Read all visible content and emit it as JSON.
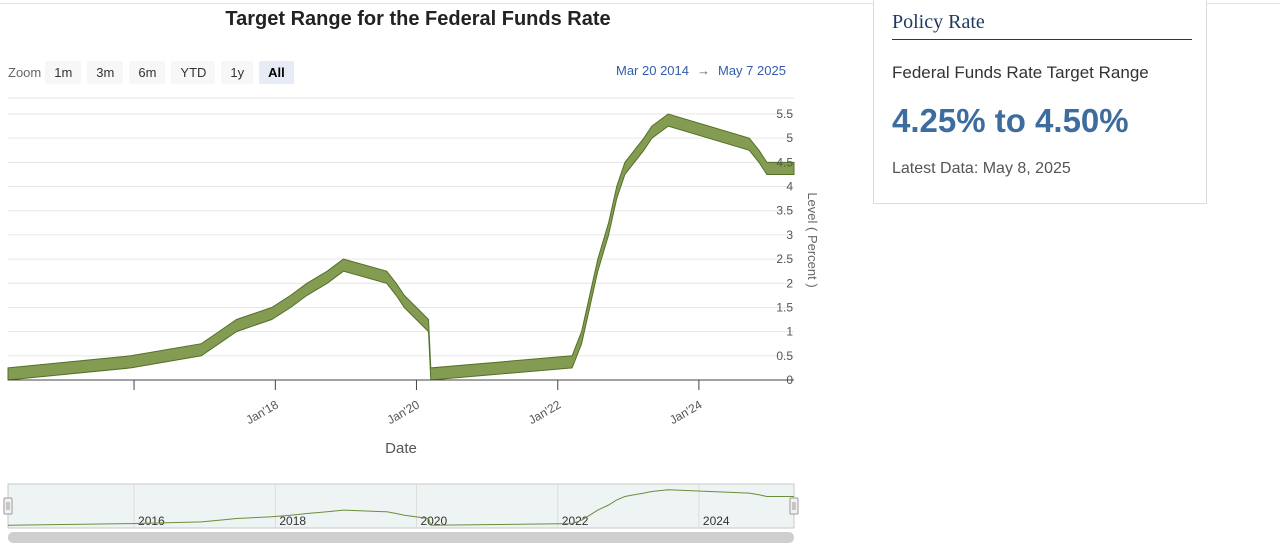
{
  "chart_title": "Target Range for the Federal Funds Rate",
  "zoom": {
    "label": "Zoom",
    "buttons": [
      "1m",
      "3m",
      "6m",
      "YTD",
      "1y",
      "All"
    ],
    "active": "All"
  },
  "date_range": {
    "from": "Mar 20 2014",
    "arrow": "→",
    "to": "May 7 2025"
  },
  "policy_card": {
    "heading": "Policy Rate",
    "subtitle": "Federal Funds Rate Target Range",
    "value": "4.25% to 4.50%",
    "latest": "Latest Data: May 8, 2025"
  },
  "colors": {
    "band_fill": "#839c52",
    "band_stroke": "#55702a",
    "nav_line": "#6b8e3a",
    "accent_text": "#3d6d9e"
  },
  "chart_data": {
    "type": "area",
    "xlabel": "Date",
    "ylabel": "Level ( Percent )",
    "x_range": [
      "2014-03-20",
      "2025-05-07"
    ],
    "ylim": [
      0,
      5.5
    ],
    "y_ticks": [
      "0",
      "0.5",
      "1",
      "1.5",
      "2",
      "2.5",
      "3",
      "3.5",
      "4",
      "4.5",
      "5",
      "5.5"
    ],
    "x_ticks": [
      {
        "date": "2016-01-01",
        "label": ""
      },
      {
        "date": "2018-01-01",
        "label": "Jan'18"
      },
      {
        "date": "2020-01-01",
        "label": "Jan'20"
      },
      {
        "date": "2022-01-01",
        "label": "Jan'22"
      },
      {
        "date": "2024-01-01",
        "label": "Jan'24"
      }
    ],
    "navigator_labels": [
      {
        "date": "2016-01-01",
        "label": "2016"
      },
      {
        "date": "2018-01-01",
        "label": "2018"
      },
      {
        "date": "2020-01-01",
        "label": "2020"
      },
      {
        "date": "2022-01-01",
        "label": "2022"
      },
      {
        "date": "2024-01-01",
        "label": "2024"
      }
    ],
    "grid": true,
    "series": [
      {
        "values": [
          {
            "x": "2014-03-20",
            "low": 0,
            "high": 0.25
          },
          {
            "x": "2015-12-16",
            "low": 0.25,
            "high": 0.5
          },
          {
            "x": "2016-12-14",
            "low": 0.5,
            "high": 0.75
          },
          {
            "x": "2017-03-15",
            "low": 0.75,
            "high": 1.0
          },
          {
            "x": "2017-06-14",
            "low": 1.0,
            "high": 1.25
          },
          {
            "x": "2017-12-13",
            "low": 1.25,
            "high": 1.5
          },
          {
            "x": "2018-03-21",
            "low": 1.5,
            "high": 1.75
          },
          {
            "x": "2018-06-13",
            "low": 1.75,
            "high": 2.0
          },
          {
            "x": "2018-09-26",
            "low": 2.0,
            "high": 2.25
          },
          {
            "x": "2018-12-19",
            "low": 2.25,
            "high": 2.5
          },
          {
            "x": "2019-07-31",
            "low": 2.0,
            "high": 2.25
          },
          {
            "x": "2019-09-18",
            "low": 1.75,
            "high": 2.0
          },
          {
            "x": "2019-10-30",
            "low": 1.5,
            "high": 1.75
          },
          {
            "x": "2020-03-03",
            "low": 1.0,
            "high": 1.25
          },
          {
            "x": "2020-03-15",
            "low": 0,
            "high": 0.25
          },
          {
            "x": "2022-03-16",
            "low": 0.25,
            "high": 0.5
          },
          {
            "x": "2022-05-04",
            "low": 0.75,
            "high": 1.0
          },
          {
            "x": "2022-06-15",
            "low": 1.5,
            "high": 1.75
          },
          {
            "x": "2022-07-27",
            "low": 2.25,
            "high": 2.5
          },
          {
            "x": "2022-09-21",
            "low": 3.0,
            "high": 3.25
          },
          {
            "x": "2022-11-02",
            "low": 3.75,
            "high": 4.0
          },
          {
            "x": "2022-12-14",
            "low": 4.25,
            "high": 4.5
          },
          {
            "x": "2023-02-01",
            "low": 4.5,
            "high": 4.75
          },
          {
            "x": "2023-03-22",
            "low": 4.75,
            "high": 5.0
          },
          {
            "x": "2023-05-03",
            "low": 5.0,
            "high": 5.25
          },
          {
            "x": "2023-07-26",
            "low": 5.25,
            "high": 5.5
          },
          {
            "x": "2024-09-18",
            "low": 4.75,
            "high": 5.0
          },
          {
            "x": "2024-11-07",
            "low": 4.5,
            "high": 4.75
          },
          {
            "x": "2024-12-18",
            "low": 4.25,
            "high": 4.5
          },
          {
            "x": "2025-05-07",
            "low": 4.25,
            "high": 4.5
          }
        ]
      }
    ]
  }
}
